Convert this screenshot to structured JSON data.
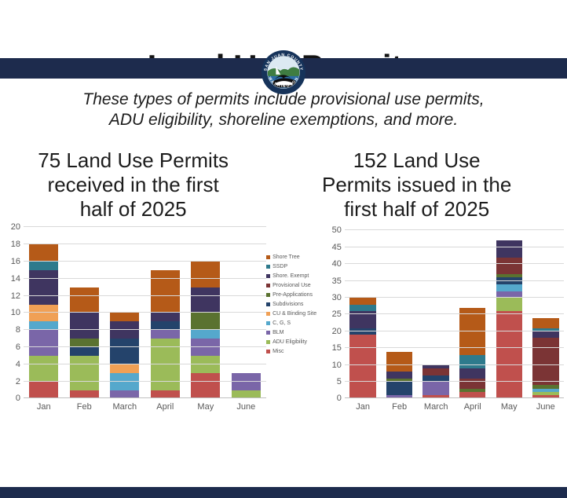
{
  "banner": {
    "color": "#1d2b4d"
  },
  "logo": {
    "top_text": "SAN JUAN COUNTY",
    "bottom_text": "WASHINGTON"
  },
  "header": {
    "title": "Land Use Permits",
    "subtitle_line1": "These types of permits include provisional use permits,",
    "subtitle_line2": "ADU eligibility, shoreline exemptions, and more."
  },
  "chart_titles": {
    "left_line1": "75 Land Use Permits",
    "left_line2": "received in the first",
    "left_line3": "half of 2025",
    "right_line1": "152 Land Use",
    "right_line2": "Permits issued in the",
    "right_line3": "first half of 2025"
  },
  "legend": {
    "items": [
      {
        "label": "Shore Tree",
        "color": "#b55a18"
      },
      {
        "label": "SSDP",
        "color": "#2e7a8c"
      },
      {
        "label": "Shore. Exempt",
        "color": "#3f3560"
      },
      {
        "label": "Provisional Use",
        "color": "#7b3435"
      },
      {
        "label": "Pre-Applications",
        "color": "#5a7230"
      },
      {
        "label": "Subdivisions",
        "color": "#24436b"
      },
      {
        "label": "CU & Binding Site",
        "color": "#f0a055"
      },
      {
        "label": "C, G, S",
        "color": "#55a8cc"
      },
      {
        "label": "BLM",
        "color": "#7a66a8"
      },
      {
        "label": "ADU Eligibility",
        "color": "#9bbb59"
      },
      {
        "label": "Misc",
        "color": "#c0504d"
      }
    ]
  },
  "chart_data": [
    {
      "type": "bar",
      "stacked": true,
      "title": "75 Land Use Permits received in the first half of 2025",
      "categories": [
        "Jan",
        "Feb",
        "March",
        "April",
        "May",
        "June"
      ],
      "ylim": [
        0,
        20
      ],
      "ytick_step": 2,
      "grid": true,
      "totals": [
        18,
        13,
        10,
        15,
        16,
        3
      ],
      "series": [
        {
          "name": "Shore Tree",
          "values": [
            2,
            3,
            1,
            5,
            3,
            0
          ]
        },
        {
          "name": "SSDP",
          "values": [
            1,
            0,
            0,
            0,
            0,
            0
          ]
        },
        {
          "name": "Shore. Exempt",
          "values": [
            4,
            3,
            2,
            1,
            3,
            0
          ]
        },
        {
          "name": "Provisional Use",
          "values": [
            0,
            0,
            0,
            0,
            0,
            0
          ]
        },
        {
          "name": "Pre-Applications",
          "values": [
            0,
            1,
            0,
            0,
            2,
            0
          ]
        },
        {
          "name": "Subdivisions",
          "values": [
            0,
            1,
            3,
            1,
            0,
            0
          ]
        },
        {
          "name": "CU & Binding Site",
          "values": [
            2,
            0,
            1,
            0,
            0,
            0
          ]
        },
        {
          "name": "C, G, S",
          "values": [
            1,
            0,
            2,
            0,
            1,
            0
          ]
        },
        {
          "name": "BLM",
          "values": [
            3,
            0,
            1,
            1,
            2,
            2
          ]
        },
        {
          "name": "ADU Eligibility",
          "values": [
            3,
            4,
            0,
            6,
            2,
            1
          ]
        },
        {
          "name": "Misc",
          "values": [
            2,
            1,
            0,
            1,
            3,
            0
          ]
        }
      ]
    },
    {
      "type": "bar",
      "stacked": true,
      "title": "152 Land Use Permits issued in the first half of 2025",
      "categories": [
        "Jan",
        "Feb",
        "March",
        "April",
        "May",
        "June"
      ],
      "ylim": [
        0,
        50
      ],
      "ytick_step": 5,
      "grid": true,
      "totals": [
        30,
        14,
        10,
        27,
        47,
        24
      ],
      "series": [
        {
          "name": "Shore Tree",
          "values": [
            2,
            6,
            0,
            14,
            0,
            3
          ]
        },
        {
          "name": "SSDP",
          "values": [
            2,
            0,
            0,
            4,
            0,
            1
          ]
        },
        {
          "name": "Shore. Exempt",
          "values": [
            5,
            2,
            1,
            3,
            5,
            2
          ]
        },
        {
          "name": "Provisional Use",
          "values": [
            0,
            0,
            2,
            3,
            5,
            14
          ]
        },
        {
          "name": "Pre-Applications",
          "values": [
            0,
            1,
            0,
            1,
            1,
            1
          ]
        },
        {
          "name": "Subdivisions",
          "values": [
            2,
            4,
            2,
            0,
            2,
            0
          ]
        },
        {
          "name": "CU & Binding Site",
          "values": [
            0,
            0,
            0,
            0,
            0,
            0
          ]
        },
        {
          "name": "C, G, S",
          "values": [
            0,
            0,
            0,
            0,
            2,
            1
          ]
        },
        {
          "name": "BLM",
          "values": [
            0,
            1,
            4,
            0,
            2,
            0
          ]
        },
        {
          "name": "ADU Eligibility",
          "values": [
            0,
            0,
            0,
            0,
            4,
            1
          ]
        },
        {
          "name": "Misc",
          "values": [
            19,
            0,
            1,
            2,
            26,
            1
          ]
        }
      ]
    }
  ]
}
